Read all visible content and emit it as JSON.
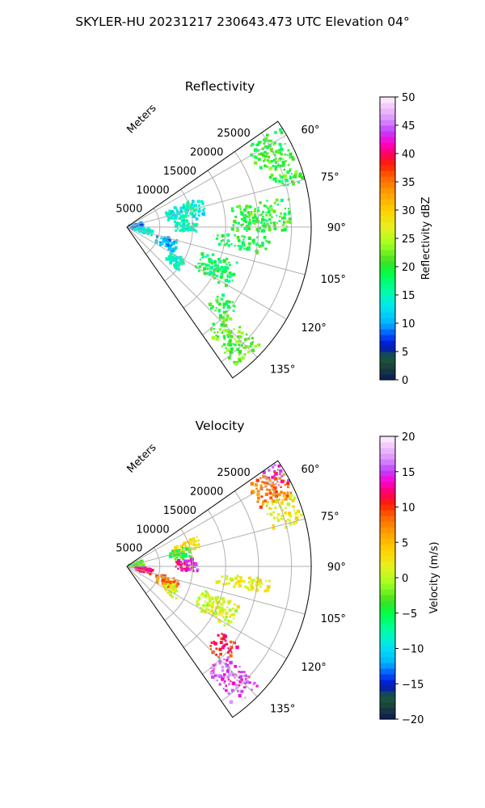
{
  "figure": {
    "suptitle": "SKYLER-HU  20231217  230643.473 UTC Elevation 04°"
  },
  "chart_data": [
    {
      "type": "heatmap",
      "projection": "polar-sector",
      "title": "Reflectivity",
      "radial_label": "Meters",
      "radial_ticks": [
        5000,
        10000,
        15000,
        20000,
        25000
      ],
      "radial_tick_labels": [
        "5000",
        "10000",
        "15000",
        "20000",
        "25000"
      ],
      "rlim": [
        0,
        28000
      ],
      "azimuth_ticks": [
        60,
        75,
        90,
        105,
        120,
        135
      ],
      "azimuth_tick_labels": [
        "60°",
        "75°",
        "90°",
        "105°",
        "120°",
        "135°"
      ],
      "azimuth_range": [
        55,
        145
      ],
      "grid": true,
      "colorbar": {
        "label": "Reflectivity dBZ",
        "range": [
          0,
          50
        ],
        "ticks": [
          0,
          5,
          10,
          15,
          20,
          25,
          30,
          35,
          40,
          45,
          50
        ],
        "tick_labels": [
          "0",
          "5",
          "10",
          "15",
          "20",
          "25",
          "30",
          "35",
          "40",
          "45",
          "50"
        ]
      },
      "echoes": [
        {
          "az_range": [
            57,
            68
          ],
          "r_range": [
            22000,
            27800
          ],
          "value": 20
        },
        {
          "az_range": [
            66,
            74
          ],
          "r_range": [
            23000,
            27800
          ],
          "value": 21
        },
        {
          "az_range": [
            72,
            76
          ],
          "r_range": [
            24500,
            27800
          ],
          "value": 19
        },
        {
          "az_range": [
            68,
            82
          ],
          "r_range": [
            6500,
            12000
          ],
          "value": 14
        },
        {
          "az_range": [
            84,
            94
          ],
          "r_range": [
            7500,
            11000
          ],
          "value": 15
        },
        {
          "az_range": [
            70,
            100
          ],
          "r_range": [
            600,
            2600
          ],
          "value": 9
        },
        {
          "az_range": [
            95,
            110
          ],
          "r_range": [
            1500,
            3800
          ],
          "value": 14
        },
        {
          "az_range": [
            105,
            118
          ],
          "r_range": [
            5000,
            8500
          ],
          "value": 11
        },
        {
          "az_range": [
            120,
            131
          ],
          "r_range": [
            8000,
            10500
          ],
          "value": 15
        },
        {
          "az_range": [
            126,
            135
          ],
          "r_range": [
            17500,
            21000
          ],
          "value": 20
        },
        {
          "az_range": [
            132,
            142
          ],
          "r_range": [
            20000,
            27000
          ],
          "value": 22
        },
        {
          "az_range": [
            108,
            122
          ],
          "r_range": [
            12000,
            18000
          ],
          "value": 18
        },
        {
          "az_range": [
            95,
            102
          ],
          "r_range": [
            14000,
            22000
          ],
          "value": 19
        },
        {
          "az_range": [
            80,
            92
          ],
          "r_range": [
            16000,
            25000
          ],
          "value": 20
        }
      ]
    },
    {
      "type": "heatmap",
      "projection": "polar-sector",
      "title": "Velocity",
      "radial_label": "Meters",
      "radial_ticks": [
        5000,
        10000,
        15000,
        20000,
        25000
      ],
      "radial_tick_labels": [
        "5000",
        "10000",
        "15000",
        "20000",
        "25000"
      ],
      "rlim": [
        0,
        28000
      ],
      "azimuth_ticks": [
        60,
        75,
        90,
        105,
        120,
        135
      ],
      "azimuth_tick_labels": [
        "60°",
        "75°",
        "90°",
        "105°",
        "120°",
        "135°"
      ],
      "azimuth_range": [
        55,
        145
      ],
      "grid": true,
      "colorbar": {
        "label": "Velocity (m/s)",
        "range": [
          -20,
          20
        ],
        "ticks": [
          -20,
          -15,
          -10,
          -5,
          0,
          5,
          10,
          15,
          20
        ],
        "tick_labels": [
          "−20",
          "−15",
          "−10",
          "−5",
          "0",
          "5",
          "10",
          "15",
          "20"
        ]
      },
      "echoes": [
        {
          "az_range": [
            56,
            62
          ],
          "r_range": [
            25000,
            27800
          ],
          "value": 15
        },
        {
          "az_range": [
            57,
            68
          ],
          "r_range": [
            22000,
            27500
          ],
          "value": 8
        },
        {
          "az_range": [
            66,
            76
          ],
          "r_range": [
            23000,
            27800
          ],
          "value": 2
        },
        {
          "az_range": [
            68,
            76
          ],
          "r_range": [
            8000,
            12000
          ],
          "value": 3
        },
        {
          "az_range": [
            72,
            82
          ],
          "r_range": [
            6500,
            10000
          ],
          "value": -4
        },
        {
          "az_range": [
            84,
            94
          ],
          "r_range": [
            7500,
            11000
          ],
          "value": 14
        },
        {
          "az_range": [
            70,
            100
          ],
          "r_range": [
            600,
            2600
          ],
          "value": -3
        },
        {
          "az_range": [
            95,
            110
          ],
          "r_range": [
            1500,
            3800
          ],
          "value": 12
        },
        {
          "az_range": [
            105,
            118
          ],
          "r_range": [
            5000,
            8500
          ],
          "value": 8
        },
        {
          "az_range": [
            112,
            124
          ],
          "r_range": [
            6500,
            9000
          ],
          "value": 1
        },
        {
          "az_range": [
            126,
            135
          ],
          "r_range": [
            17500,
            21000
          ],
          "value": 11
        },
        {
          "az_range": [
            132,
            142
          ],
          "r_range": [
            20000,
            27000
          ],
          "value": 15
        },
        {
          "az_range": [
            108,
            122
          ],
          "r_range": [
            12000,
            18000
          ],
          "value": 1
        },
        {
          "az_range": [
            95,
            102
          ],
          "r_range": [
            14000,
            22000
          ],
          "value": 2
        }
      ]
    }
  ]
}
